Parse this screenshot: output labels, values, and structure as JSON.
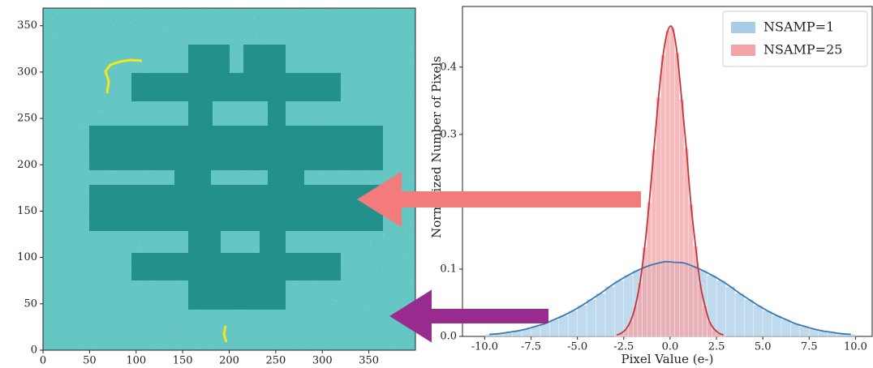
{
  "chart_data": [
    {
      "type": "image",
      "xlim": [
        0,
        400
      ],
      "ylim": [
        0,
        369
      ],
      "xticks": [
        0,
        50,
        100,
        150,
        200,
        250,
        300,
        350
      ],
      "yticks": [
        0,
        50,
        100,
        150,
        200,
        250,
        300,
        350
      ]
    },
    {
      "type": "histogram",
      "xlabel": "Pixel Value (e-)",
      "ylabel": "Normalized Number of Pixels",
      "xlim": [
        -11.2,
        10.9
      ],
      "ylim": [
        0,
        0.49
      ],
      "xticks": [
        {
          "value": -10,
          "label": "-10.0"
        },
        -7.5,
        {
          "value": -5,
          "label": "-5.0"
        },
        -2.5,
        {
          "value": 0,
          "label": "0.0"
        },
        2.5,
        {
          "value": 5,
          "label": "5.0"
        },
        7.5,
        {
          "value": 10,
          "label": "10.0"
        }
      ],
      "yticks": [
        {
          "value": 0,
          "label": "0.0"
        },
        0.1,
        0.3,
        0.4
      ],
      "legend": "upper right",
      "series": [
        {
          "name": "NSAMP=1",
          "color": "#a9cde6",
          "line_color": "#3b78b0",
          "bins": [
            -10,
            -9.5,
            -9,
            -8.5,
            -8,
            -7.5,
            -7,
            -6.5,
            -6,
            -5.5,
            -5,
            -4.5,
            -4,
            -3.5,
            -3,
            -2.5,
            -2,
            -1.5,
            -1,
            -0.5,
            0,
            0.5,
            1,
            1.5,
            2,
            2.5,
            3,
            3.5,
            4,
            4.5,
            5,
            5.5,
            6,
            6.5,
            7,
            7.5,
            8,
            8.5,
            9,
            9.5,
            10
          ],
          "values": [
            0.003,
            0.004,
            0.006,
            0.008,
            0.011,
            0.015,
            0.019,
            0.025,
            0.031,
            0.038,
            0.046,
            0.055,
            0.064,
            0.074,
            0.083,
            0.091,
            0.098,
            0.104,
            0.108,
            0.111,
            0.11,
            0.109,
            0.104,
            0.098,
            0.091,
            0.083,
            0.074,
            0.064,
            0.055,
            0.046,
            0.038,
            0.031,
            0.025,
            0.019,
            0.015,
            0.011,
            0.008,
            0.006,
            0.004,
            0.003
          ]
        },
        {
          "name": "NSAMP=25",
          "color": "#f4a3a6",
          "line_color": "#c3363c",
          "bins": [
            -3,
            -2.75,
            -2.5,
            -2.25,
            -2,
            -1.75,
            -1.5,
            -1.25,
            -1,
            -0.75,
            -0.5,
            -0.25,
            0,
            0.25,
            0.5,
            0.75,
            1,
            1.25,
            1.5,
            1.75,
            2,
            2.25,
            2.5,
            2.75,
            3
          ],
          "values": [
            0.002,
            0.005,
            0.011,
            0.023,
            0.045,
            0.08,
            0.132,
            0.199,
            0.277,
            0.355,
            0.418,
            0.454,
            0.458,
            0.421,
            0.352,
            0.279,
            0.196,
            0.134,
            0.078,
            0.046,
            0.022,
            0.011,
            0.005,
            0.002
          ]
        }
      ]
    }
  ]
}
